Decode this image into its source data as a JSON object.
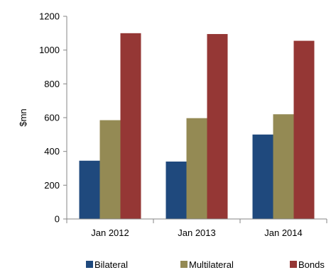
{
  "chart_data": {
    "type": "bar",
    "title": "",
    "xlabel": "",
    "ylabel": "$mn",
    "ylim": [
      0,
      1200
    ],
    "yticks": [
      0,
      200,
      400,
      600,
      800,
      1000,
      1200
    ],
    "grid": false,
    "legend_position": "bottom",
    "categories": [
      "Jan 2012",
      "Jan 2013",
      "Jan 2014"
    ],
    "series": [
      {
        "name": "Bilateral",
        "color": "#1F497D",
        "values": [
          345,
          340,
          500
        ]
      },
      {
        "name": "Multilateral",
        "color": "#948A54",
        "values": [
          585,
          597,
          620
        ]
      },
      {
        "name": "Bonds",
        "color": "#953735",
        "values": [
          1100,
          1095,
          1055
        ]
      }
    ]
  }
}
